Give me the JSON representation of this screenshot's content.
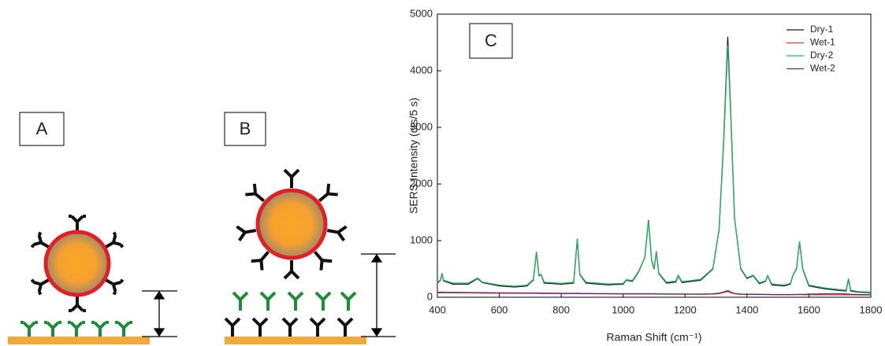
{
  "panel_labels": [
    "A",
    "B"
  ],
  "chart_data": {
    "type": "line",
    "panel_label": "C",
    "xlabel": "Raman Shift (cm⁻¹)",
    "ylabel": "SERS Intensity (cts/5 s)",
    "xlim": [
      400,
      1800
    ],
    "ylim": [
      0,
      5000
    ],
    "xticks": [
      400,
      600,
      800,
      1000,
      1200,
      1400,
      1600,
      1800
    ],
    "yticks": [
      0,
      1000,
      2000,
      3000,
      4000,
      5000
    ],
    "grid": false,
    "legend": "top-right",
    "x": [
      400,
      410,
      415,
      420,
      450,
      500,
      530,
      545,
      600,
      650,
      690,
      700,
      710,
      720,
      728,
      735,
      745,
      800,
      840,
      852,
      860,
      880,
      950,
      1000,
      1010,
      1030,
      1050,
      1070,
      1082,
      1092,
      1100,
      1107,
      1115,
      1140,
      1170,
      1178,
      1190,
      1250,
      1290,
      1310,
      1325,
      1338,
      1348,
      1360,
      1380,
      1400,
      1420,
      1440,
      1460,
      1467,
      1480,
      1520,
      1540,
      1548,
      1560,
      1570,
      1580,
      1600,
      1650,
      1700,
      1720,
      1728,
      1735,
      1760,
      1800
    ],
    "series": [
      {
        "name": "Dry-1",
        "color": "#1a1a1a",
        "values": [
          250,
          300,
          420,
          290,
          230,
          230,
          330,
          260,
          200,
          180,
          200,
          260,
          300,
          800,
          380,
          400,
          250,
          230,
          250,
          1030,
          400,
          250,
          220,
          230,
          300,
          280,
          450,
          700,
          1360,
          650,
          500,
          810,
          420,
          250,
          270,
          380,
          260,
          300,
          500,
          1200,
          2800,
          4600,
          3200,
          1400,
          500,
          330,
          380,
          240,
          280,
          380,
          220,
          200,
          230,
          380,
          500,
          980,
          500,
          200,
          150,
          120,
          110,
          320,
          110,
          90,
          80
        ]
      },
      {
        "name": "Wet-1",
        "color": "#e8392c",
        "values": [
          80,
          80,
          82,
          80,
          78,
          76,
          75,
          74,
          72,
          70,
          69,
          69,
          69,
          70,
          68,
          68,
          67,
          65,
          64,
          66,
          63,
          62,
          60,
          59,
          59,
          58,
          58,
          58,
          60,
          57,
          57,
          57,
          56,
          55,
          54,
          54,
          54,
          53,
          56,
          65,
          85,
          100,
          80,
          62,
          52,
          50,
          50,
          48,
          47,
          47,
          46,
          45,
          45,
          46,
          46,
          48,
          45,
          44,
          43,
          42,
          41,
          42,
          41,
          40,
          40
        ]
      },
      {
        "name": "Dry-2",
        "color": "#22b35e",
        "values": [
          260,
          310,
          410,
          300,
          250,
          250,
          340,
          270,
          215,
          195,
          215,
          270,
          310,
          790,
          390,
          405,
          265,
          245,
          265,
          1020,
          410,
          265,
          235,
          245,
          310,
          295,
          460,
          700,
          1350,
          660,
          510,
          800,
          430,
          265,
          285,
          390,
          275,
          315,
          510,
          1190,
          2750,
          4450,
          3150,
          1390,
          510,
          345,
          390,
          255,
          290,
          385,
          235,
          215,
          245,
          385,
          510,
          970,
          510,
          215,
          165,
          135,
          125,
          330,
          125,
          100,
          90
        ]
      },
      {
        "name": "Wet-2",
        "color": "#5b2c83",
        "values": [
          90,
          88,
          90,
          88,
          86,
          84,
          82,
          80,
          78,
          76,
          75,
          75,
          75,
          76,
          74,
          73,
          72,
          70,
          69,
          71,
          68,
          66,
          64,
          63,
          63,
          62,
          62,
          62,
          64,
          61,
          60,
          60,
          59,
          58,
          57,
          57,
          57,
          56,
          60,
          72,
          95,
          120,
          90,
          68,
          56,
          53,
          53,
          51,
          50,
          50,
          49,
          48,
          48,
          49,
          49,
          52,
          50,
          55,
          60,
          62,
          58,
          56,
          52,
          48,
          45
        ]
      }
    ]
  }
}
